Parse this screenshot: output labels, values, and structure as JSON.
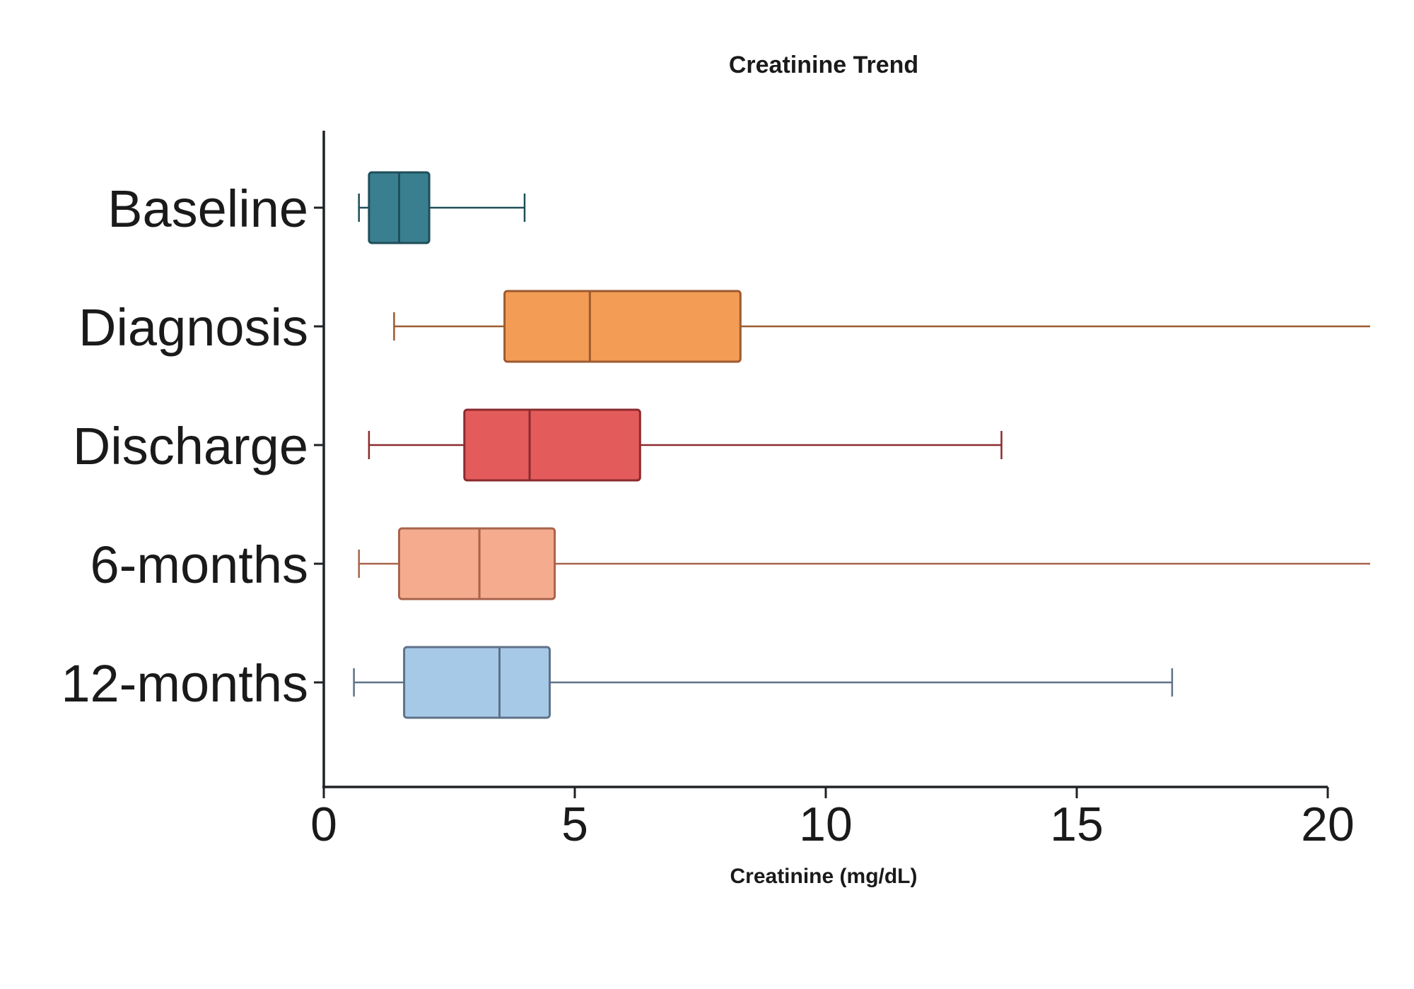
{
  "chart_data": {
    "type": "box",
    "orientation": "horizontal",
    "title": "Creatinine Trend",
    "xlabel": "Creatinine (mg/dL)",
    "ylabel": "",
    "xlim": [
      0,
      20
    ],
    "xticks": [
      "0",
      "5",
      "10",
      "15",
      "20"
    ],
    "grid": false,
    "categories": [
      "Baseline",
      "Diagnosis",
      "Discharge",
      "6-months",
      "12-months"
    ],
    "boxes": [
      {
        "category": "Baseline",
        "whisker_low": 0.7,
        "q1": 0.9,
        "median": 1.5,
        "q3": 2.1,
        "whisker_high": 4.0,
        "fill": "#3a7f8f",
        "stroke": "#1f4e5a"
      },
      {
        "category": "Diagnosis",
        "whisker_low": 1.4,
        "q1": 3.6,
        "median": 5.3,
        "q3": 8.3,
        "whisker_high": 21.0,
        "fill": "#f39c55",
        "stroke": "#9c5a2f"
      },
      {
        "category": "Discharge",
        "whisker_low": 0.9,
        "q1": 2.8,
        "median": 4.1,
        "q3": 6.3,
        "whisker_high": 13.5,
        "fill": "#e35b5b",
        "stroke": "#8b2a2e"
      },
      {
        "category": "6-months",
        "whisker_low": 0.7,
        "q1": 1.5,
        "median": 3.1,
        "q3": 4.6,
        "whisker_high": 21.0,
        "fill": "#f5ac8e",
        "stroke": "#a8634b"
      },
      {
        "category": "12-months",
        "whisker_low": 0.6,
        "q1": 1.6,
        "median": 3.5,
        "q3": 4.5,
        "whisker_high": 16.9,
        "fill": "#a7c9e8",
        "stroke": "#5e7187"
      }
    ]
  }
}
